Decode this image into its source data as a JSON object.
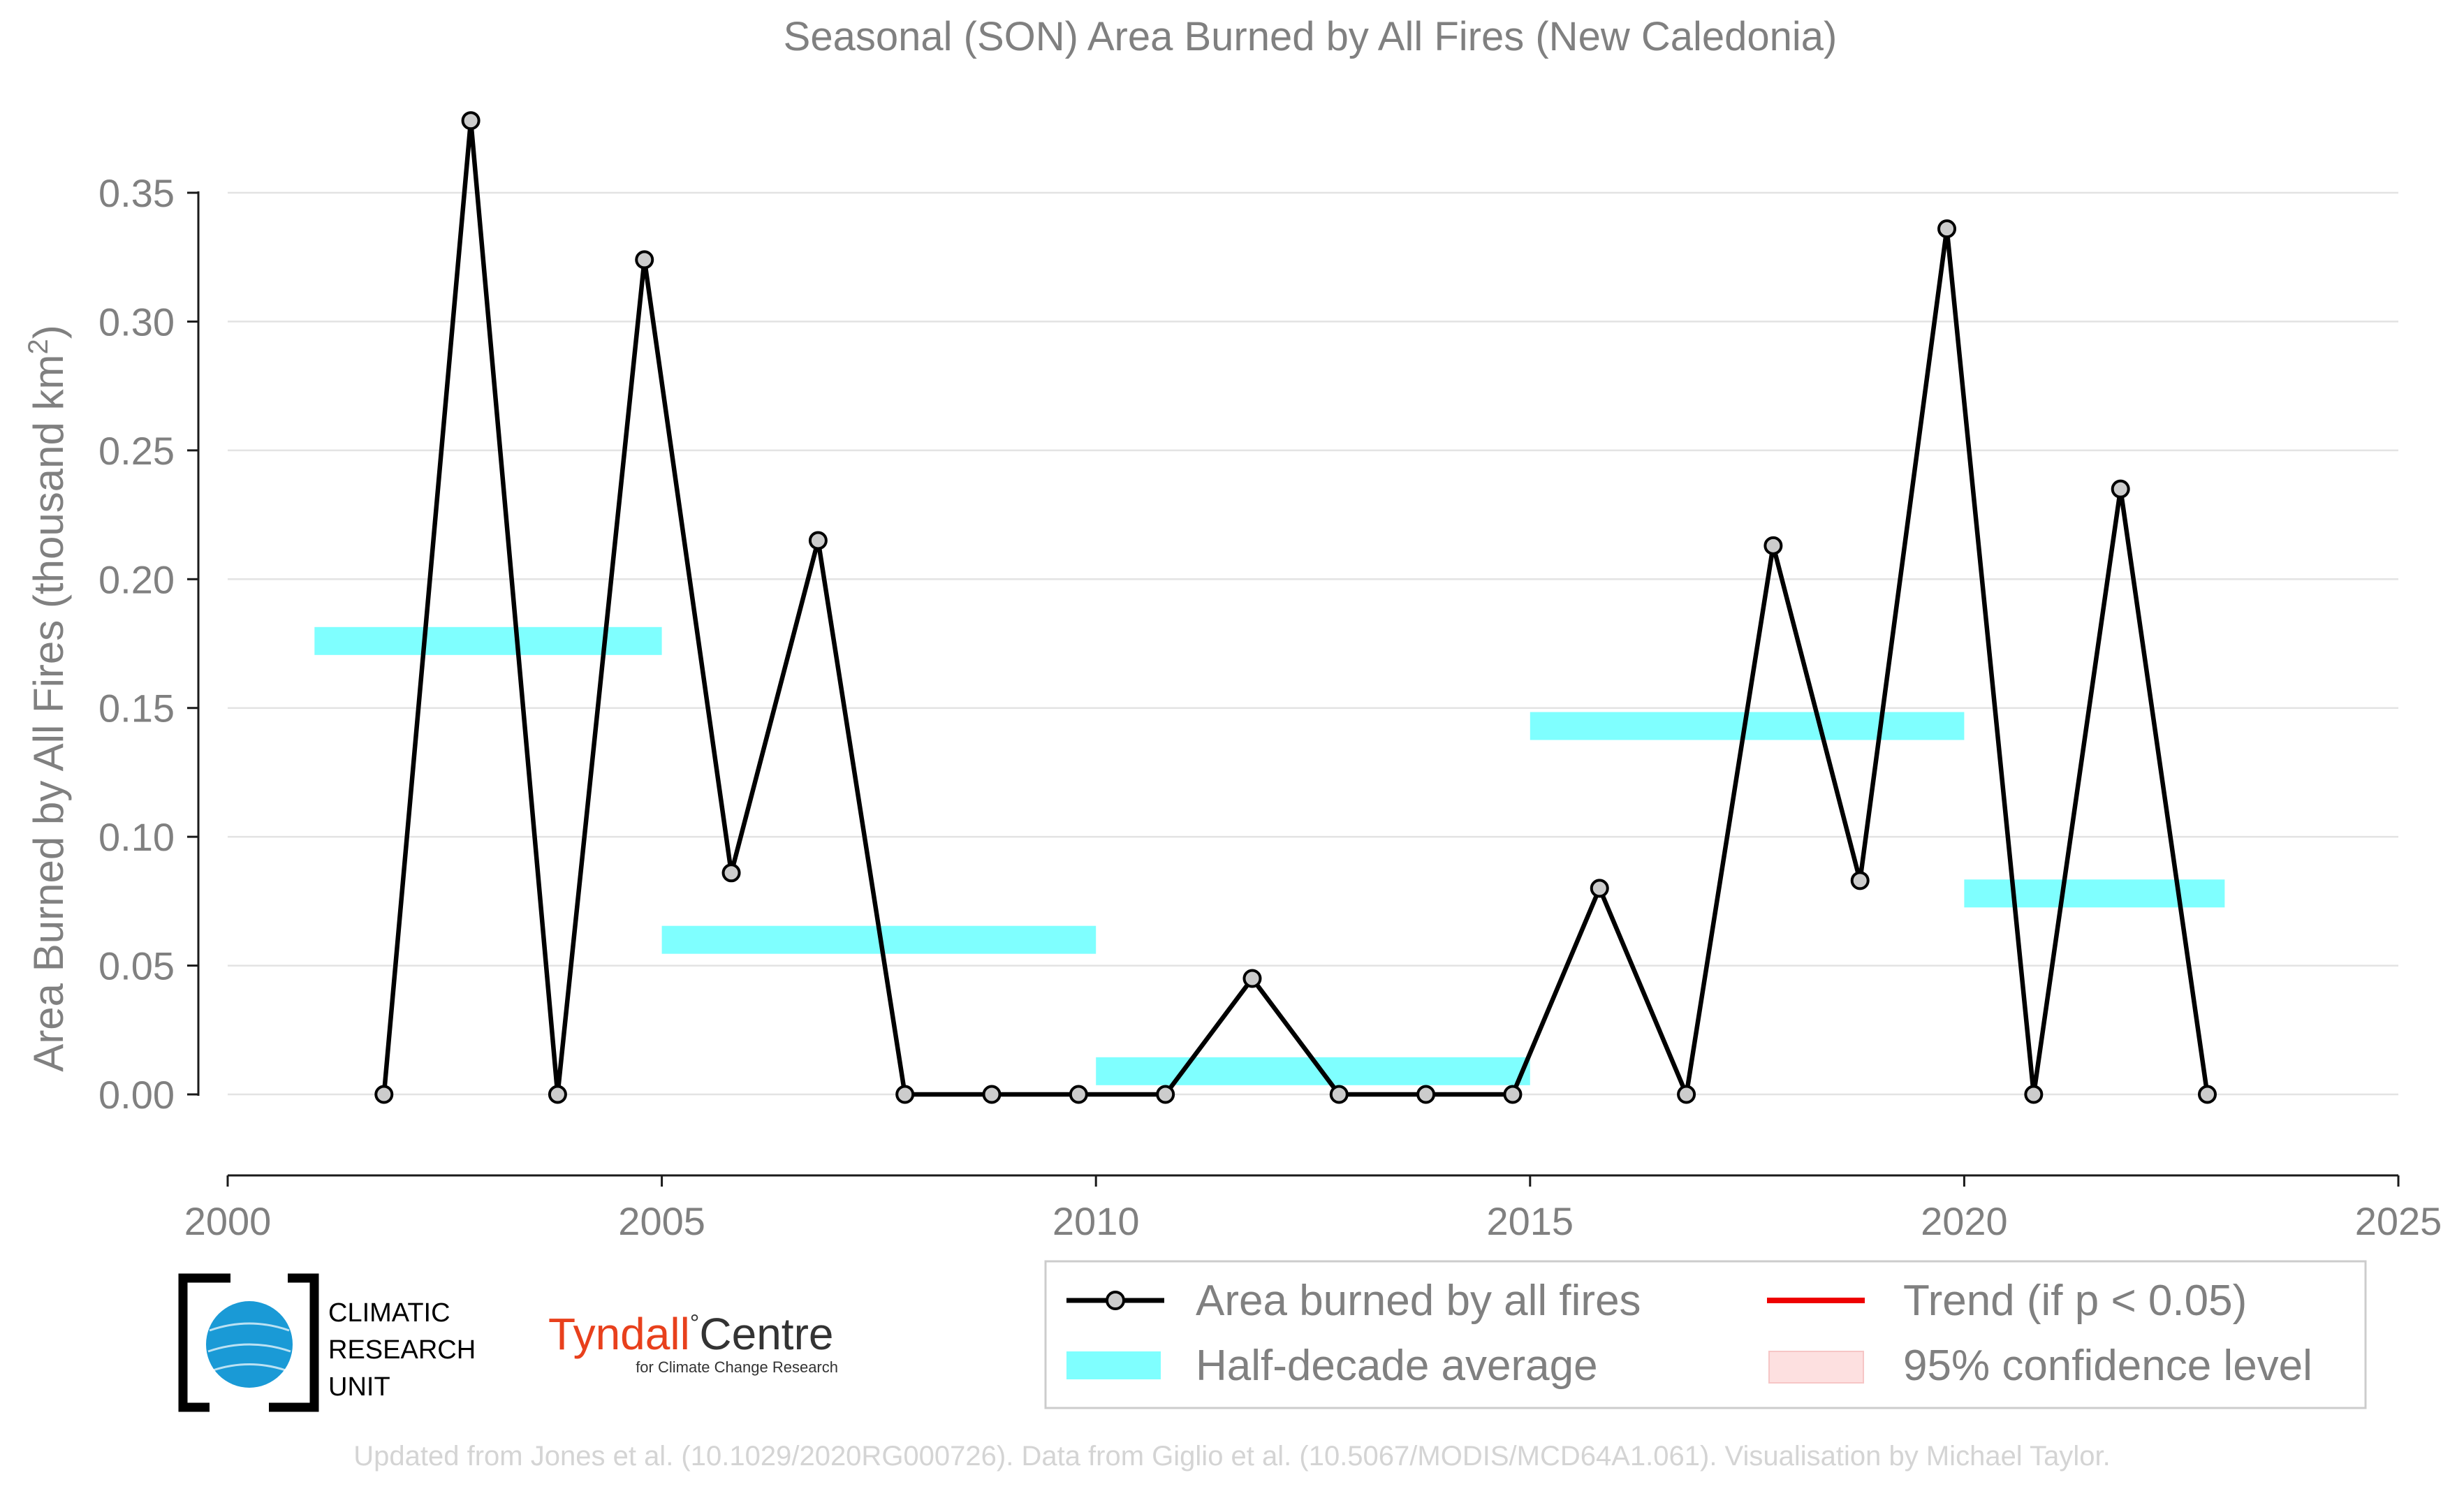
{
  "chart_data": {
    "type": "line",
    "title": "Seasonal (SON) Area Burned by All Fires (New Caledonia)",
    "ylabel": "Area Burned by All Fires (thousand km²)",
    "xlabel": "",
    "xlim": [
      2000,
      2025
    ],
    "ylim": [
      -0.03,
      0.38
    ],
    "xticks": [
      2000,
      2005,
      2010,
      2015,
      2020,
      2025
    ],
    "yticks": [
      0.0,
      0.05,
      0.1,
      0.15,
      0.2,
      0.25,
      0.3,
      0.35
    ],
    "ytick_labels": [
      "0.00",
      "0.05",
      "0.10",
      "0.15",
      "0.20",
      "0.25",
      "0.30",
      "0.35"
    ],
    "grid": "horizontal",
    "series": [
      {
        "name": "Area burned by all fires",
        "color": "#000000",
        "marker_fill": "#cccccc",
        "x": [
          2001.8,
          2002.8,
          2003.8,
          2004.8,
          2005.8,
          2006.8,
          2007.8,
          2008.8,
          2009.8,
          2010.8,
          2011.8,
          2012.8,
          2013.8,
          2014.8,
          2015.8,
          2016.8,
          2017.8,
          2018.8,
          2019.8,
          2020.8,
          2021.8,
          2022.8
        ],
        "y": [
          0.0,
          0.378,
          0.0,
          0.324,
          0.086,
          0.215,
          0.0,
          0.0,
          0.0,
          0.0,
          0.045,
          0.0,
          0.0,
          0.0,
          0.08,
          0.0,
          0.213,
          0.083,
          0.336,
          0.0,
          0.235,
          0.0
        ]
      }
    ],
    "half_decade_averages": {
      "name": "Half-decade average",
      "color": "#7fffff",
      "segments": [
        {
          "x_start": 2001,
          "x_end": 2005,
          "value": 0.176
        },
        {
          "x_start": 2005,
          "x_end": 2010,
          "value": 0.06
        },
        {
          "x_start": 2010,
          "x_end": 2015,
          "value": 0.009
        },
        {
          "x_start": 2015,
          "x_end": 2020,
          "value": 0.143
        },
        {
          "x_start": 2020,
          "x_end": 2023,
          "value": 0.078
        }
      ]
    },
    "legend": {
      "placement": "bottom-right",
      "entries": [
        {
          "label": "Area burned by all fires",
          "kind": "line-marker",
          "color": "#000000"
        },
        {
          "label": "Trend (if p < 0.05)",
          "kind": "line",
          "color": "#ee0000"
        },
        {
          "label": "Half-decade average",
          "kind": "band",
          "color": "#7fffff"
        },
        {
          "label": "95% confidence level",
          "kind": "band",
          "color": "#fde0e0"
        }
      ]
    }
  },
  "logos": {
    "cru": {
      "lines": [
        "CLIMATIC",
        "RESEARCH",
        "UNIT"
      ],
      "globe_color": "#1a9ad6"
    },
    "tyndall": {
      "main": "Tyndall",
      "suffix": "Centre",
      "degree": "°",
      "tagline": "for Climate Change Research",
      "main_color": "#e8401c"
    }
  },
  "footer": "Updated from Jones et al. (10.1029/2020RG000726). Data from Giglio et al. (10.5067/MODIS/MCD64A1.061). Visualisation by Michael Taylor."
}
